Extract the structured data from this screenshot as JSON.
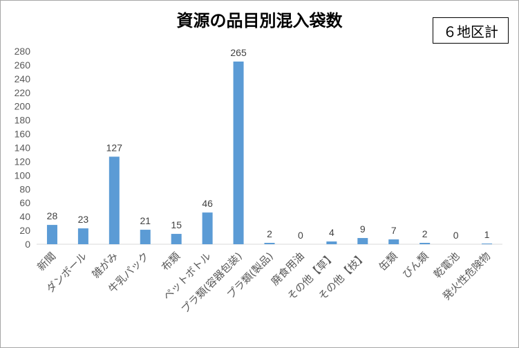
{
  "badge": "６地区計",
  "chart_data": {
    "type": "bar",
    "title": "資源の品目別混入袋数",
    "categories": [
      "新聞",
      "ダンボール",
      "雑がみ",
      "牛乳パック",
      "布類",
      "ペットボトル",
      "プラ類(容器包装)",
      "プラ類(製品)",
      "廃食用油",
      "その他【草】",
      "その他【枝】",
      "缶類",
      "びん類",
      "乾電池",
      "発火性危険物"
    ],
    "values": [
      28,
      23,
      127,
      21,
      15,
      46,
      265,
      2,
      0,
      4,
      9,
      7,
      2,
      0,
      1
    ],
    "ylim": [
      0,
      280
    ],
    "yticks": [
      0,
      20,
      40,
      60,
      80,
      100,
      120,
      140,
      160,
      180,
      200,
      220,
      240,
      260,
      280
    ],
    "xlabel": "",
    "ylabel": "",
    "grid": false,
    "legend": "none",
    "bar_color": "#5b9bd5"
  }
}
